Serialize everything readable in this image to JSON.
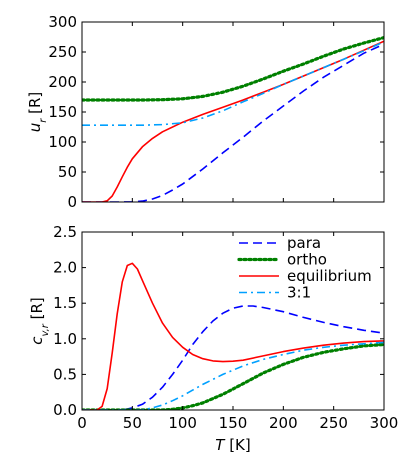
{
  "chart_data": [
    {
      "type": "line",
      "xlabel": "T [K]",
      "ylabel": "u_r [R]",
      "xlim": [
        0,
        300
      ],
      "ylim": [
        0,
        300
      ],
      "xticks": [
        0,
        50,
        100,
        150,
        200,
        250,
        300
      ],
      "yticks": [
        0,
        50,
        100,
        150,
        200,
        250,
        300
      ],
      "show_xtick_labels": false,
      "grid": false,
      "series": [
        {
          "name": "para",
          "color": "#0000ff",
          "style": "dashed",
          "x": [
            0,
            40,
            50,
            60,
            70,
            80,
            90,
            100,
            120,
            140,
            160,
            180,
            200,
            220,
            240,
            260,
            280,
            300
          ],
          "y": [
            0,
            0,
            0.2,
            1.5,
            5,
            11,
            20,
            30,
            55,
            82,
            108,
            135,
            160,
            185,
            208,
            228,
            248,
            263
          ]
        },
        {
          "name": "ortho",
          "color": "#008000",
          "style": "dotted",
          "x": [
            0,
            20,
            40,
            60,
            80,
            100,
            120,
            140,
            160,
            180,
            200,
            220,
            240,
            260,
            280,
            300
          ],
          "y": [
            170,
            170,
            170,
            170,
            170.5,
            172,
            176,
            183,
            193,
            205,
            218,
            230,
            243,
            255,
            265,
            274
          ]
        },
        {
          "name": "equilibrium",
          "color": "#ff0000",
          "style": "solid",
          "x": [
            0,
            20,
            25,
            30,
            35,
            40,
            45,
            50,
            60,
            70,
            80,
            100,
            120,
            140,
            160,
            180,
            200,
            220,
            240,
            260,
            280,
            300
          ],
          "y": [
            0,
            0,
            2,
            10,
            25,
            42,
            58,
            72,
            92,
            106,
            117,
            133,
            146,
            158,
            170,
            183,
            196,
            210,
            224,
            238,
            253,
            268
          ]
        },
        {
          "name": "3:1",
          "color": "#00a0ff",
          "style": "dashdot",
          "x": [
            0,
            20,
            40,
            60,
            80,
            100,
            120,
            140,
            160,
            180,
            200,
            220,
            240,
            260,
            280,
            300
          ],
          "y": [
            128,
            128,
            128,
            128,
            129,
            132,
            140,
            152,
            167,
            181,
            196,
            210,
            224,
            238,
            252,
            267
          ]
        }
      ]
    },
    {
      "type": "line",
      "xlabel": "T [K]",
      "ylabel": "c_v,r [R]",
      "xlim": [
        0,
        300
      ],
      "ylim": [
        0,
        2.5
      ],
      "xticks": [
        0,
        50,
        100,
        150,
        200,
        250,
        300
      ],
      "yticks": [
        0.0,
        0.5,
        1.0,
        1.5,
        2.0,
        2.5
      ],
      "xtick_labels": [
        "0",
        "50",
        "100",
        "150",
        "200",
        "250",
        "300"
      ],
      "ytick_labels": [
        "0.0",
        "0.5",
        "1.0",
        "1.5",
        "2.0",
        "2.5"
      ],
      "show_xtick_labels": true,
      "grid": false,
      "legend": {
        "position": "top-right",
        "entries": [
          "para",
          "ortho",
          "equilibrium",
          "3:1"
        ]
      },
      "series": [
        {
          "name": "para",
          "color": "#0000ff",
          "style": "dashed",
          "x": [
            0,
            40,
            50,
            60,
            70,
            80,
            90,
            100,
            110,
            120,
            130,
            140,
            150,
            160,
            170,
            180,
            200,
            220,
            240,
            260,
            280,
            300
          ],
          "y": [
            0,
            0,
            0.03,
            0.08,
            0.18,
            0.32,
            0.5,
            0.7,
            0.92,
            1.1,
            1.25,
            1.36,
            1.43,
            1.46,
            1.46,
            1.44,
            1.38,
            1.3,
            1.23,
            1.17,
            1.12,
            1.08
          ]
        },
        {
          "name": "ortho",
          "color": "#008000",
          "style": "dotted",
          "x": [
            0,
            80,
            90,
            100,
            110,
            120,
            140,
            160,
            180,
            200,
            220,
            240,
            260,
            280,
            300
          ],
          "y": [
            0,
            0,
            0.01,
            0.03,
            0.06,
            0.1,
            0.22,
            0.37,
            0.52,
            0.64,
            0.74,
            0.81,
            0.86,
            0.9,
            0.92
          ]
        },
        {
          "name": "equilibrium",
          "color": "#ff0000",
          "style": "solid",
          "x": [
            0,
            15,
            20,
            25,
            30,
            35,
            40,
            45,
            50,
            55,
            60,
            70,
            80,
            90,
            100,
            110,
            120,
            130,
            140,
            150,
            160,
            180,
            200,
            220,
            240,
            260,
            280,
            300
          ],
          "y": [
            0,
            0,
            0.05,
            0.3,
            0.8,
            1.35,
            1.8,
            2.03,
            2.06,
            1.98,
            1.82,
            1.5,
            1.22,
            1.02,
            0.88,
            0.78,
            0.72,
            0.69,
            0.68,
            0.685,
            0.7,
            0.76,
            0.82,
            0.87,
            0.91,
            0.94,
            0.96,
            0.97
          ]
        },
        {
          "name": "3:1",
          "color": "#00a0ff",
          "style": "dashdot",
          "x": [
            0,
            60,
            70,
            80,
            90,
            100,
            110,
            120,
            140,
            160,
            180,
            200,
            220,
            240,
            260,
            280,
            300
          ],
          "y": [
            0,
            0,
            0.03,
            0.07,
            0.13,
            0.2,
            0.28,
            0.36,
            0.5,
            0.62,
            0.71,
            0.78,
            0.84,
            0.88,
            0.91,
            0.93,
            0.95
          ]
        }
      ]
    }
  ]
}
